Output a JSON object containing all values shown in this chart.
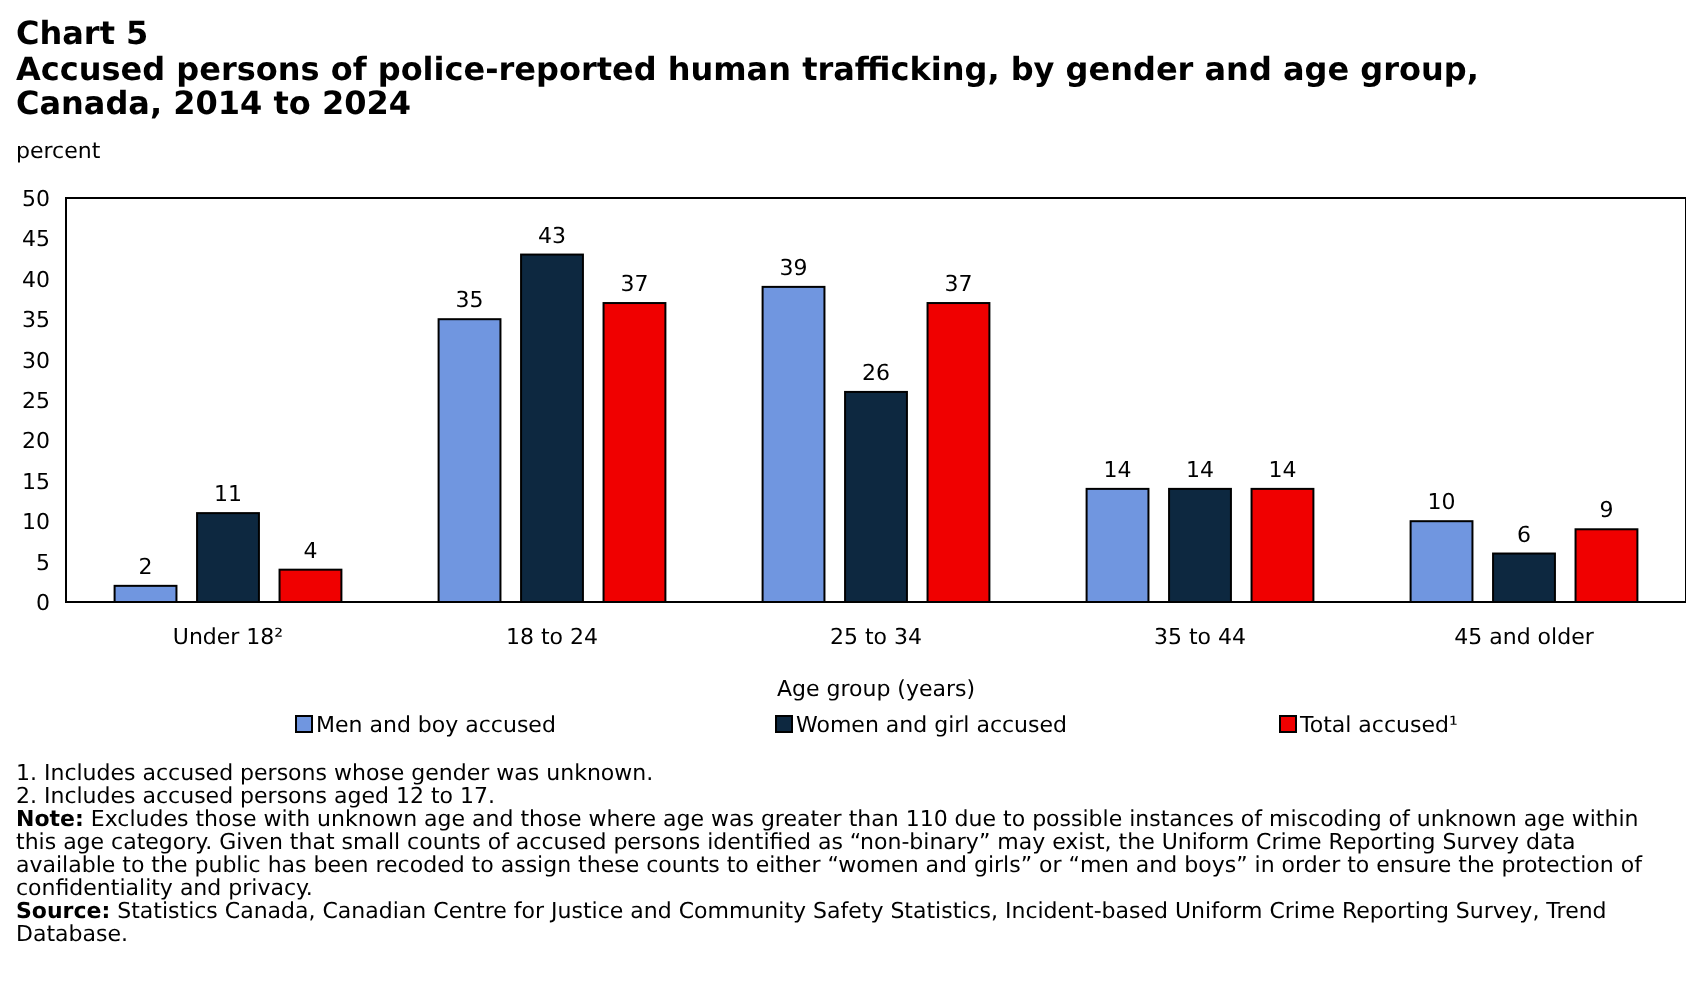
{
  "chart_data": {
    "type": "bar",
    "title": "Chart 5",
    "subtitle": "Accused persons of police-reported human trafficking, by gender and age group, Canada, 2014 to 2024",
    "ylabel": "percent",
    "xlabel": "Age group (years)",
    "categories": [
      "Under 18²",
      "18 to 24",
      "25 to 34",
      "35 to 44",
      "45 and older"
    ],
    "series": [
      {
        "name": "Men and boy accused",
        "color": "#7096e0",
        "values": [
          2,
          35,
          39,
          14,
          10
        ]
      },
      {
        "name": "Women and girl accused",
        "color": "#0d2840",
        "values": [
          11,
          43,
          26,
          14,
          6
        ]
      },
      {
        "name": "Total accused¹",
        "color": "#f00000",
        "values": [
          4,
          37,
          37,
          14,
          9
        ]
      }
    ],
    "ylim": [
      0,
      50
    ],
    "yticks": [
      0,
      5,
      10,
      15,
      20,
      25,
      30,
      35,
      40,
      45,
      50
    ],
    "data_labels": true,
    "legend": "bottom",
    "grid": false,
    "annotations": [
      "1. Includes accused persons whose gender was unknown.",
      "2. Includes accused persons aged 12 to 17.",
      "Note: Excludes those with unknown age and those where age was greater than 110 due to possible instances of miscoding of unknown age within this age category. Given that small counts of accused persons identified as “non-binary” may exist, the Uniform Crime Reporting Survey data available to the public has been recoded to assign these counts to either “women and girls” or “men and boys” in order to ensure the protection of confidentiality and privacy.",
      "Source: Statistics Canada, Canadian Centre for Justice and Community Safety Statistics, Incident-based Uniform Crime Reporting Survey, Trend Database."
    ]
  }
}
